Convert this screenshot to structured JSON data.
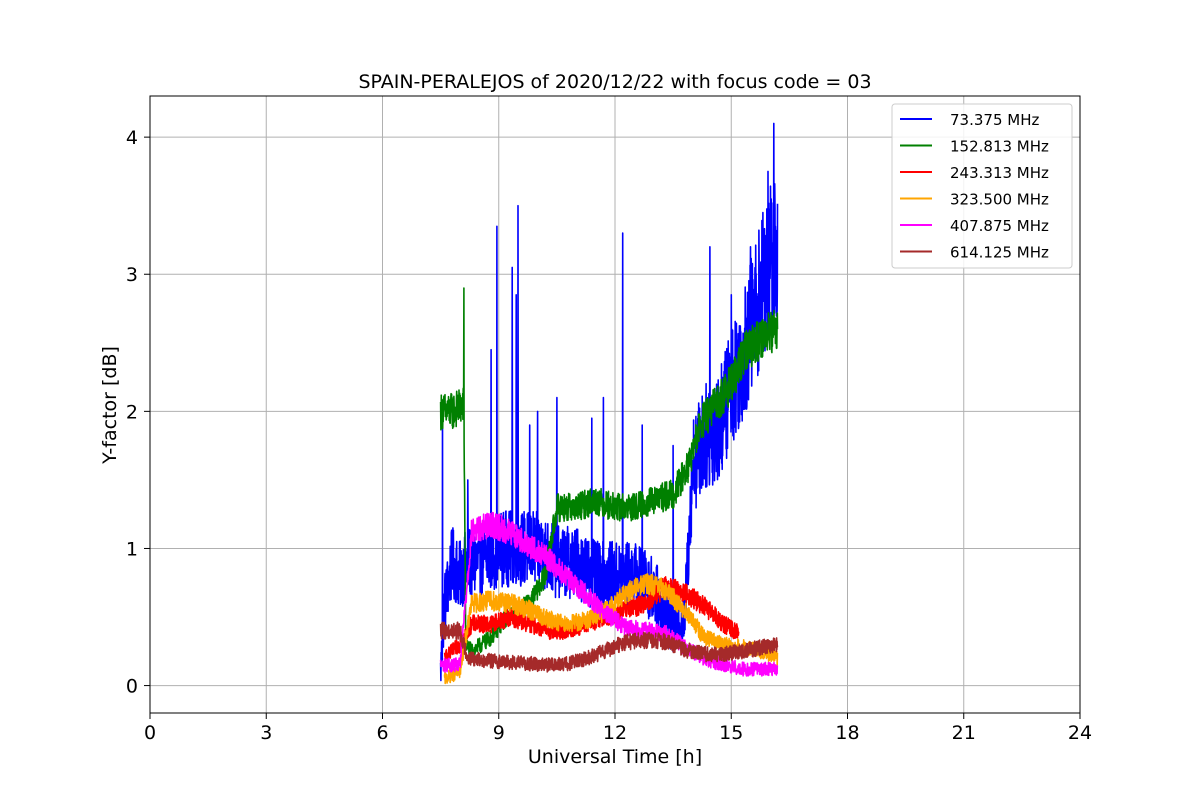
{
  "chart_data": {
    "type": "line",
    "title": "SPAIN-PERALEJOS of 2020/12/22 with focus code = 03",
    "xlabel": "Universal Time [h]",
    "ylabel": "Y-factor [dB]",
    "xlim": [
      0,
      24
    ],
    "ylim": [
      -0.2,
      4.3
    ],
    "xticks": [
      0,
      3,
      6,
      9,
      12,
      15,
      18,
      21,
      24
    ],
    "yticks": [
      0,
      1,
      2,
      3,
      4
    ],
    "grid": true,
    "legend_position": "top-right",
    "series": [
      {
        "name": "  73.375 MHz",
        "color": "#0000ff",
        "x": [
          7.5,
          7.6,
          7.8,
          8.0,
          8.2,
          8.5,
          9.0,
          9.5,
          10.0,
          10.5,
          11.0,
          11.5,
          12.0,
          12.5,
          13.0,
          13.5,
          13.8,
          14.0,
          14.3,
          14.7,
          15.0,
          15.3,
          15.6,
          15.9,
          16.2
        ],
        "y": [
          0.1,
          0.6,
          0.9,
          0.8,
          0.9,
          0.9,
          1.0,
          1.0,
          1.0,
          0.9,
          0.9,
          0.8,
          0.8,
          0.8,
          0.7,
          0.4,
          0.5,
          1.6,
          1.8,
          1.9,
          2.2,
          2.4,
          2.7,
          3.0,
          3.2
        ],
        "spike_x": [
          7.55,
          8.2,
          8.8,
          8.95,
          9.35,
          9.45,
          9.5,
          9.8,
          10.0,
          10.5,
          11.4,
          11.7,
          12.2,
          12.7,
          13.5,
          14.45,
          15.0,
          15.5,
          15.95,
          16.05,
          16.1
        ],
        "spike_y": [
          2.05,
          1.5,
          2.45,
          3.35,
          3.05,
          2.85,
          3.5,
          1.9,
          2.0,
          2.1,
          1.95,
          2.1,
          3.3,
          1.9,
          1.75,
          3.2,
          2.85,
          3.2,
          3.75,
          3.1,
          4.1
        ]
      },
      {
        "name": "152.813 MHz",
        "color": "#008000",
        "x": [
          7.5,
          7.8,
          8.1,
          8.15,
          8.3,
          8.8,
          9.2,
          9.8,
          10.2,
          10.5,
          11.0,
          11.5,
          12.0,
          12.5,
          13.0,
          13.5,
          13.9,
          14.2,
          14.6,
          15.0,
          15.4,
          15.8,
          16.2
        ],
        "y": [
          2.0,
          2.0,
          2.05,
          0.3,
          0.25,
          0.35,
          0.5,
          0.6,
          0.8,
          1.3,
          1.3,
          1.35,
          1.3,
          1.3,
          1.35,
          1.4,
          1.6,
          1.9,
          2.05,
          2.2,
          2.45,
          2.55,
          2.6
        ],
        "spike_x": [
          8.1
        ],
        "spike_y": [
          2.9
        ]
      },
      {
        "name": "243.313 MHz",
        "color": "#ff0000",
        "x": [
          7.6,
          8.0,
          8.3,
          8.8,
          9.3,
          9.8,
          10.3,
          10.8,
          11.3,
          11.8,
          12.3,
          12.8,
          13.3,
          13.8,
          14.3,
          14.8,
          15.2
        ],
        "y": [
          0.2,
          0.3,
          0.45,
          0.45,
          0.5,
          0.45,
          0.4,
          0.4,
          0.45,
          0.5,
          0.55,
          0.6,
          0.72,
          0.68,
          0.58,
          0.45,
          0.38
        ]
      },
      {
        "name": "323.500 MHz",
        "color": "#ffa500",
        "x": [
          7.6,
          8.0,
          8.3,
          8.8,
          9.3,
          9.8,
          10.3,
          10.8,
          11.3,
          11.8,
          12.3,
          12.8,
          13.3,
          13.8,
          14.3,
          14.8,
          15.3,
          15.8,
          16.2
        ],
        "y": [
          0.05,
          0.1,
          0.6,
          0.62,
          0.6,
          0.55,
          0.48,
          0.45,
          0.48,
          0.55,
          0.68,
          0.75,
          0.7,
          0.55,
          0.35,
          0.3,
          0.28,
          0.25,
          0.2
        ]
      },
      {
        "name": "407.875 MHz",
        "color": "#ff00ff",
        "x": [
          7.5,
          8.0,
          8.3,
          8.8,
          9.3,
          9.8,
          10.3,
          10.8,
          11.3,
          11.8,
          12.3,
          12.8,
          13.3,
          13.8,
          14.3,
          14.8,
          15.3,
          15.8,
          16.2
        ],
        "y": [
          0.15,
          0.15,
          1.12,
          1.18,
          1.12,
          1.02,
          0.92,
          0.78,
          0.65,
          0.52,
          0.42,
          0.4,
          0.38,
          0.28,
          0.2,
          0.15,
          0.12,
          0.12,
          0.12
        ]
      },
      {
        "name": "614.125 MHz",
        "color": "#a52a2a",
        "x": [
          7.5,
          8.0,
          8.2,
          8.8,
          9.3,
          9.8,
          10.3,
          10.8,
          11.3,
          11.8,
          12.3,
          12.8,
          13.3,
          13.8,
          14.3,
          14.8,
          15.3,
          15.8,
          16.2
        ],
        "y": [
          0.4,
          0.4,
          0.2,
          0.18,
          0.17,
          0.16,
          0.15,
          0.16,
          0.2,
          0.26,
          0.32,
          0.33,
          0.32,
          0.26,
          0.23,
          0.23,
          0.25,
          0.28,
          0.3
        ]
      }
    ]
  }
}
